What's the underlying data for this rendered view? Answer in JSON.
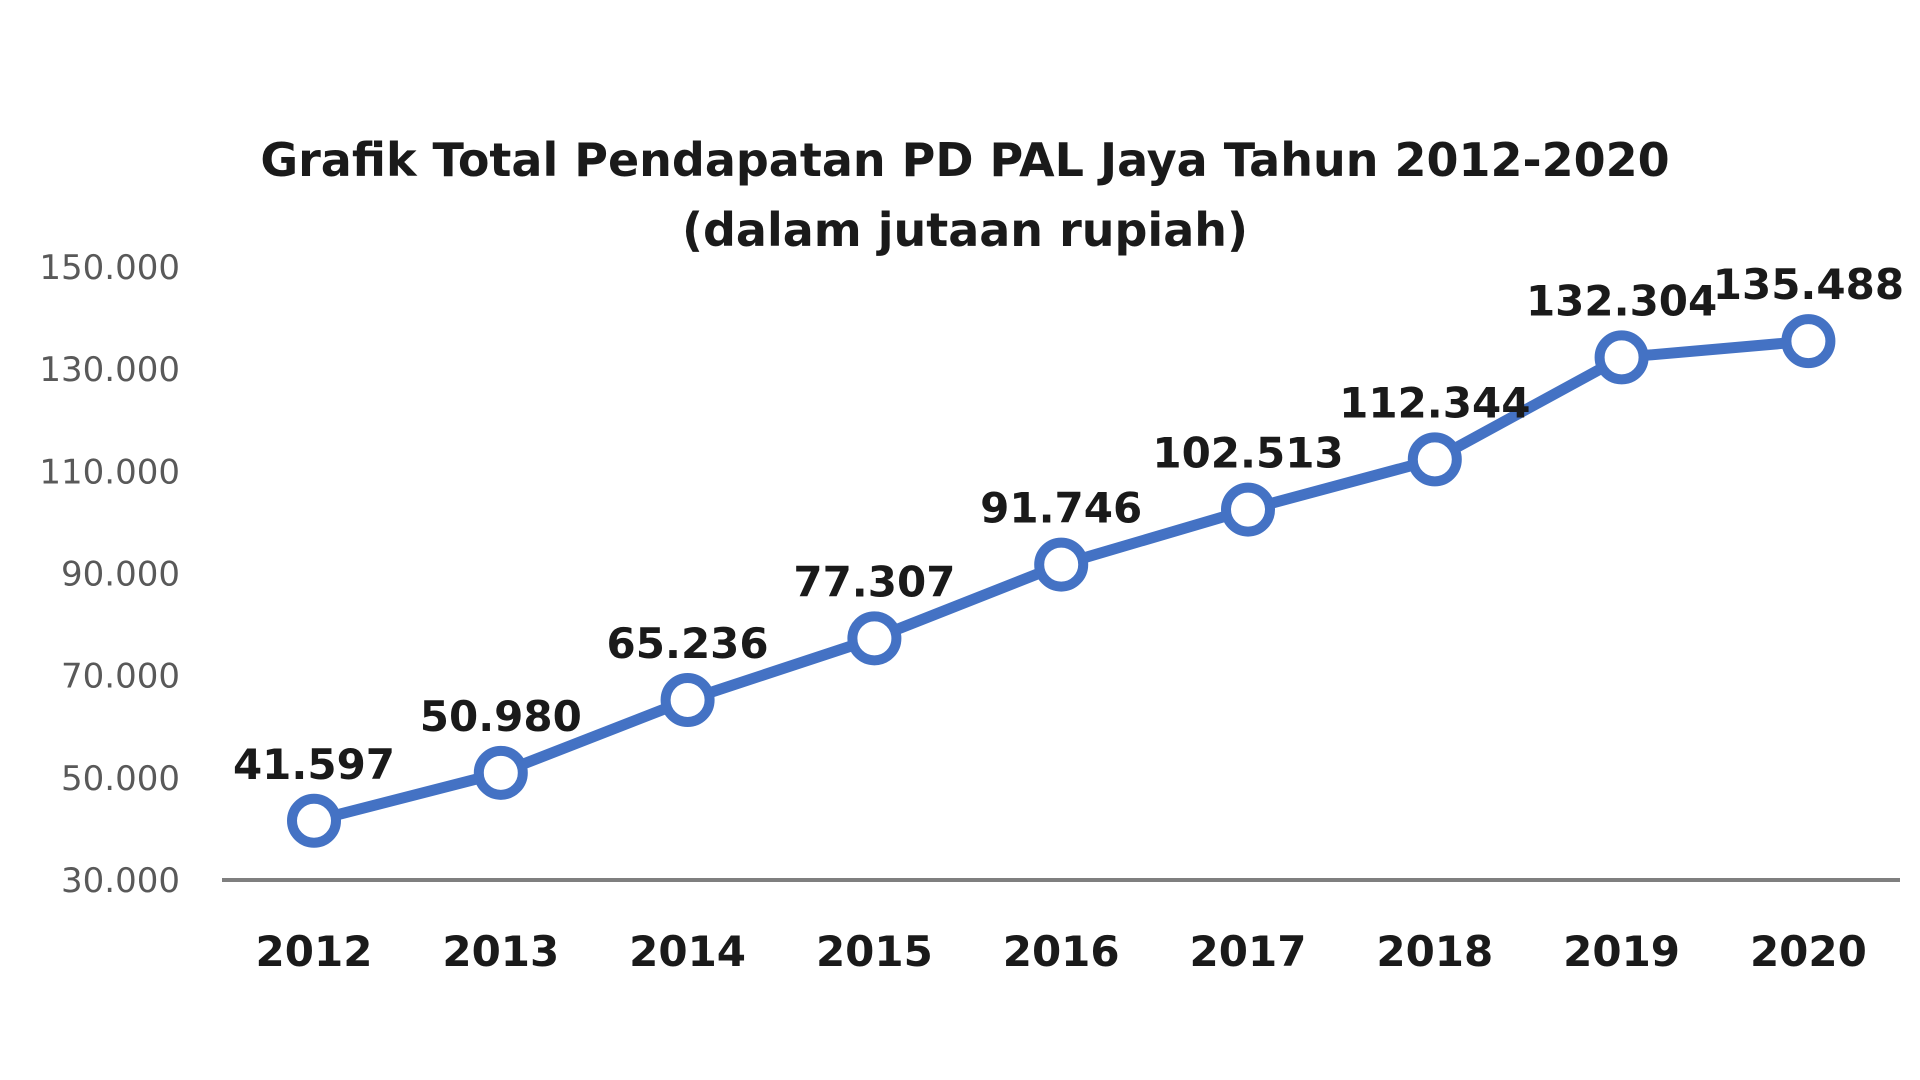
{
  "chart_data": {
    "type": "line",
    "title_lines": [
      "Grafik Total Pendapatan PD PAL Jaya Tahun 2012-2020",
      "(dalam jutaan rupiah)"
    ],
    "categories": [
      "2012",
      "2013",
      "2014",
      "2015",
      "2016",
      "2017",
      "2018",
      "2019",
      "2020"
    ],
    "series": [
      {
        "values": [
          41597,
          50980,
          65236,
          77307,
          91746,
          102513,
          112344,
          132304,
          135488
        ],
        "value_labels": [
          "41.597",
          "50.980",
          "65.236",
          "77.307",
          "91.746",
          "102.513",
          "112.344",
          "132.304",
          "135.488"
        ]
      }
    ],
    "y_ticks": [
      30000,
      50000,
      70000,
      90000,
      110000,
      130000,
      150000
    ],
    "y_tick_labels": [
      "30.000",
      "50.000",
      "70.000",
      "90.000",
      "110.000",
      "130.000",
      "150.000"
    ],
    "ylim": [
      30000,
      150000
    ],
    "xlabel": "",
    "ylabel": "",
    "grid": false,
    "legend": "none",
    "colors": {
      "line": "#4472C4",
      "marker_fill": "#ffffff",
      "axis": "#7f7f7f"
    }
  }
}
